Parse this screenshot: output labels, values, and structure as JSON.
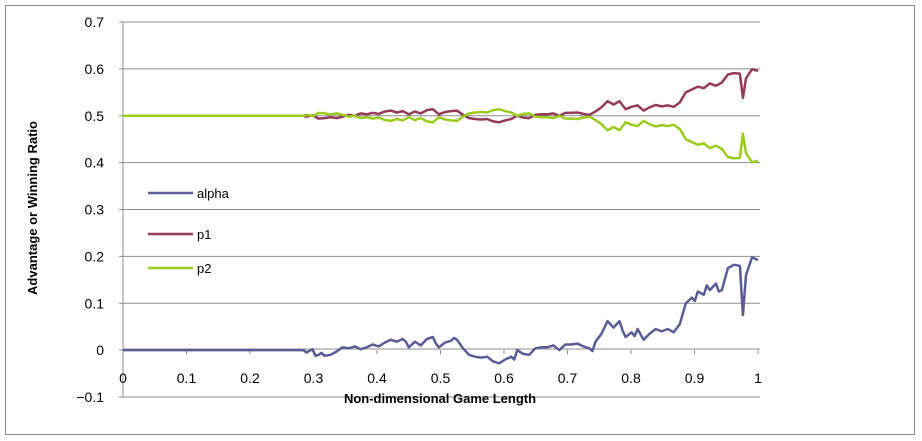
{
  "chart_data": {
    "type": "line",
    "title": "",
    "xlabel": "Non-dimensional Game Length",
    "ylabel": "Advantage or Winning Ratio",
    "xlim": [
      0,
      1
    ],
    "ylim": [
      -0.1,
      0.7
    ],
    "x_ticks": [
      0,
      0.1,
      0.2,
      0.3,
      0.4,
      0.5,
      0.6,
      0.7,
      0.8,
      0.9,
      1
    ],
    "x_tick_labels": [
      "0",
      "0.1",
      "0.2",
      "0.3",
      "0.4",
      "0.5",
      "0.6",
      "0.7",
      "0.8",
      "0.9",
      "1"
    ],
    "y_ticks": [
      -0.1,
      0,
      0.1,
      0.2,
      0.3,
      0.4,
      0.5,
      0.6,
      0.7
    ],
    "y_tick_labels": [
      "−0.1",
      "0",
      "0.1",
      "0.2",
      "0.3",
      "0.4",
      "0.5",
      "0.6",
      "0.7"
    ],
    "grid": "horizontal",
    "legend_position": "left-middle",
    "series": [
      {
        "name": "alpha",
        "color": "#5b5b96",
        "points": [
          [
            0,
            0
          ],
          [
            0.27,
            0
          ],
          [
            0.285,
            0
          ],
          [
            0.29,
            -0.005
          ],
          [
            0.3,
            0.002
          ],
          [
            0.305,
            -0.012
          ],
          [
            0.31,
            -0.01
          ],
          [
            0.315,
            -0.006
          ],
          [
            0.32,
            -0.012
          ],
          [
            0.33,
            -0.01
          ],
          [
            0.34,
            -0.003
          ],
          [
            0.35,
            0.006
          ],
          [
            0.36,
            0.004
          ],
          [
            0.37,
            0.008
          ],
          [
            0.38,
            0.002
          ],
          [
            0.39,
            0.006
          ],
          [
            0.4,
            0.012
          ],
          [
            0.41,
            0.008
          ],
          [
            0.42,
            0.016
          ],
          [
            0.43,
            0.022
          ],
          [
            0.44,
            0.018
          ],
          [
            0.45,
            0.024
          ],
          [
            0.455,
            0.018
          ],
          [
            0.46,
            0.006
          ],
          [
            0.47,
            0.018
          ],
          [
            0.48,
            0.01
          ],
          [
            0.49,
            0.024
          ],
          [
            0.5,
            0.028
          ],
          [
            0.505,
            0.014
          ],
          [
            0.51,
            0.006
          ],
          [
            0.52,
            0.016
          ],
          [
            0.53,
            0.02
          ],
          [
            0.535,
            0.026
          ],
          [
            0.54,
            0.022
          ],
          [
            0.55,
            0.004
          ],
          [
            0.56,
            -0.01
          ],
          [
            0.57,
            -0.014
          ],
          [
            0.58,
            -0.016
          ],
          [
            0.59,
            -0.014
          ],
          [
            0.6,
            -0.024
          ],
          [
            0.61,
            -0.028
          ],
          [
            0.62,
            -0.02
          ],
          [
            0.63,
            -0.014
          ],
          [
            0.635,
            -0.02
          ],
          [
            0.64,
            0.0
          ],
          [
            0.65,
            -0.008
          ],
          [
            0.66,
            -0.01
          ],
          [
            0.67,
            0.004
          ],
          [
            0.68,
            0.006
          ],
          [
            0.69,
            0.006
          ],
          [
            0.7,
            0.01
          ],
          [
            0.71,
            0.0
          ],
          [
            0.72,
            0.012
          ],
          [
            0.73,
            0.012
          ],
          [
            0.74,
            0.014
          ],
          [
            0.75,
            0.008
          ],
          [
            0.76,
            0.004
          ],
          [
            0.765,
            -0.002
          ],
          [
            0.77,
            0.018
          ],
          [
            0.78,
            0.035
          ],
          [
            0.785,
            0.048
          ],
          [
            0.79,
            0.062
          ],
          [
            0.8,
            0.048
          ],
          [
            0.81,
            0.062
          ],
          [
            0.815,
            0.042
          ],
          [
            0.82,
            0.028
          ],
          [
            0.83,
            0.038
          ],
          [
            0.835,
            0.03
          ],
          [
            0.84,
            0.045
          ],
          [
            0.85,
            0.022
          ],
          [
            0.86,
            0.035
          ],
          [
            0.87,
            0.045
          ],
          [
            0.88,
            0.04
          ],
          [
            0.89,
            0.045
          ],
          [
            0.9,
            0.038
          ],
          [
            0.91,
            0.055
          ],
          [
            0.92,
            0.1
          ],
          [
            0.93,
            0.112
          ],
          [
            0.935,
            0.105
          ],
          [
            0.94,
            0.125
          ],
          [
            0.95,
            0.118
          ],
          [
            0.955,
            0.138
          ],
          [
            0.96,
            0.128
          ],
          [
            0.97,
            0.142
          ],
          [
            0.975,
            0.125
          ],
          [
            0.98,
            0.128
          ],
          [
            0.99,
            0.175
          ],
          [
            1.0,
            0.182
          ],
          [
            1.01,
            0.18
          ],
          [
            1.015,
            0.075
          ],
          [
            1.02,
            0.16
          ],
          [
            1.03,
            0.198
          ],
          [
            1.04,
            0.192
          ]
        ]
      },
      {
        "name": "p1",
        "color": "#943b5a",
        "points": [
          [
            0,
            0.5
          ],
          [
            0.27,
            0.5
          ],
          [
            0.285,
            0.5
          ],
          [
            0.29,
            0.498
          ],
          [
            0.3,
            0.501
          ],
          [
            0.31,
            0.494
          ],
          [
            0.32,
            0.495
          ],
          [
            0.33,
            0.497
          ],
          [
            0.34,
            0.495
          ],
          [
            0.35,
            0.498
          ],
          [
            0.36,
            0.502
          ],
          [
            0.37,
            0.5
          ],
          [
            0.38,
            0.505
          ],
          [
            0.39,
            0.503
          ],
          [
            0.4,
            0.506
          ],
          [
            0.41,
            0.504
          ],
          [
            0.42,
            0.509
          ],
          [
            0.43,
            0.511
          ],
          [
            0.44,
            0.507
          ],
          [
            0.45,
            0.51
          ],
          [
            0.46,
            0.503
          ],
          [
            0.47,
            0.509
          ],
          [
            0.48,
            0.505
          ],
          [
            0.49,
            0.512
          ],
          [
            0.5,
            0.514
          ],
          [
            0.51,
            0.503
          ],
          [
            0.52,
            0.508
          ],
          [
            0.53,
            0.51
          ],
          [
            0.54,
            0.511
          ],
          [
            0.55,
            0.502
          ],
          [
            0.56,
            0.495
          ],
          [
            0.57,
            0.493
          ],
          [
            0.58,
            0.492
          ],
          [
            0.59,
            0.493
          ],
          [
            0.6,
            0.488
          ],
          [
            0.61,
            0.486
          ],
          [
            0.62,
            0.49
          ],
          [
            0.63,
            0.493
          ],
          [
            0.64,
            0.5
          ],
          [
            0.65,
            0.496
          ],
          [
            0.66,
            0.495
          ],
          [
            0.67,
            0.502
          ],
          [
            0.68,
            0.503
          ],
          [
            0.69,
            0.503
          ],
          [
            0.7,
            0.505
          ],
          [
            0.71,
            0.5
          ],
          [
            0.72,
            0.506
          ],
          [
            0.73,
            0.506
          ],
          [
            0.74,
            0.507
          ],
          [
            0.75,
            0.504
          ],
          [
            0.76,
            0.502
          ],
          [
            0.77,
            0.509
          ],
          [
            0.78,
            0.518
          ],
          [
            0.79,
            0.531
          ],
          [
            0.8,
            0.524
          ],
          [
            0.81,
            0.531
          ],
          [
            0.82,
            0.514
          ],
          [
            0.83,
            0.519
          ],
          [
            0.84,
            0.522
          ],
          [
            0.85,
            0.511
          ],
          [
            0.86,
            0.518
          ],
          [
            0.87,
            0.523
          ],
          [
            0.88,
            0.52
          ],
          [
            0.89,
            0.522
          ],
          [
            0.9,
            0.519
          ],
          [
            0.91,
            0.528
          ],
          [
            0.92,
            0.55
          ],
          [
            0.93,
            0.556
          ],
          [
            0.94,
            0.562
          ],
          [
            0.95,
            0.559
          ],
          [
            0.96,
            0.569
          ],
          [
            0.97,
            0.564
          ],
          [
            0.98,
            0.571
          ],
          [
            0.99,
            0.588
          ],
          [
            1.0,
            0.591
          ],
          [
            1.01,
            0.59
          ],
          [
            1.015,
            0.538
          ],
          [
            1.02,
            0.58
          ],
          [
            1.03,
            0.599
          ],
          [
            1.04,
            0.596
          ]
        ]
      },
      {
        "name": "p2",
        "color": "#9acb1e",
        "points": [
          [
            0,
            0.5
          ],
          [
            0.27,
            0.5
          ],
          [
            0.285,
            0.5
          ],
          [
            0.29,
            0.502
          ],
          [
            0.3,
            0.499
          ],
          [
            0.31,
            0.506
          ],
          [
            0.32,
            0.505
          ],
          [
            0.33,
            0.503
          ],
          [
            0.34,
            0.505
          ],
          [
            0.35,
            0.502
          ],
          [
            0.36,
            0.498
          ],
          [
            0.37,
            0.5
          ],
          [
            0.38,
            0.495
          ],
          [
            0.39,
            0.497
          ],
          [
            0.4,
            0.494
          ],
          [
            0.41,
            0.496
          ],
          [
            0.42,
            0.491
          ],
          [
            0.43,
            0.489
          ],
          [
            0.44,
            0.493
          ],
          [
            0.45,
            0.49
          ],
          [
            0.46,
            0.497
          ],
          [
            0.47,
            0.491
          ],
          [
            0.48,
            0.495
          ],
          [
            0.49,
            0.488
          ],
          [
            0.5,
            0.486
          ],
          [
            0.51,
            0.497
          ],
          [
            0.52,
            0.492
          ],
          [
            0.53,
            0.49
          ],
          [
            0.54,
            0.489
          ],
          [
            0.55,
            0.498
          ],
          [
            0.56,
            0.505
          ],
          [
            0.57,
            0.507
          ],
          [
            0.58,
            0.508
          ],
          [
            0.59,
            0.507
          ],
          [
            0.6,
            0.512
          ],
          [
            0.61,
            0.514
          ],
          [
            0.62,
            0.51
          ],
          [
            0.63,
            0.507
          ],
          [
            0.64,
            0.5
          ],
          [
            0.65,
            0.504
          ],
          [
            0.66,
            0.505
          ],
          [
            0.67,
            0.498
          ],
          [
            0.68,
            0.497
          ],
          [
            0.69,
            0.497
          ],
          [
            0.7,
            0.495
          ],
          [
            0.71,
            0.5
          ],
          [
            0.72,
            0.494
          ],
          [
            0.73,
            0.494
          ],
          [
            0.74,
            0.493
          ],
          [
            0.75,
            0.496
          ],
          [
            0.76,
            0.498
          ],
          [
            0.77,
            0.491
          ],
          [
            0.78,
            0.482
          ],
          [
            0.79,
            0.469
          ],
          [
            0.8,
            0.476
          ],
          [
            0.81,
            0.469
          ],
          [
            0.82,
            0.486
          ],
          [
            0.83,
            0.481
          ],
          [
            0.84,
            0.478
          ],
          [
            0.85,
            0.489
          ],
          [
            0.86,
            0.482
          ],
          [
            0.87,
            0.477
          ],
          [
            0.88,
            0.48
          ],
          [
            0.89,
            0.478
          ],
          [
            0.9,
            0.481
          ],
          [
            0.91,
            0.472
          ],
          [
            0.92,
            0.45
          ],
          [
            0.93,
            0.444
          ],
          [
            0.94,
            0.438
          ],
          [
            0.95,
            0.441
          ],
          [
            0.96,
            0.431
          ],
          [
            0.97,
            0.436
          ],
          [
            0.98,
            0.429
          ],
          [
            0.99,
            0.412
          ],
          [
            1.0,
            0.409
          ],
          [
            1.01,
            0.41
          ],
          [
            1.015,
            0.462
          ],
          [
            1.02,
            0.42
          ],
          [
            1.03,
            0.401
          ],
          [
            1.04,
            0.404
          ]
        ]
      }
    ]
  }
}
